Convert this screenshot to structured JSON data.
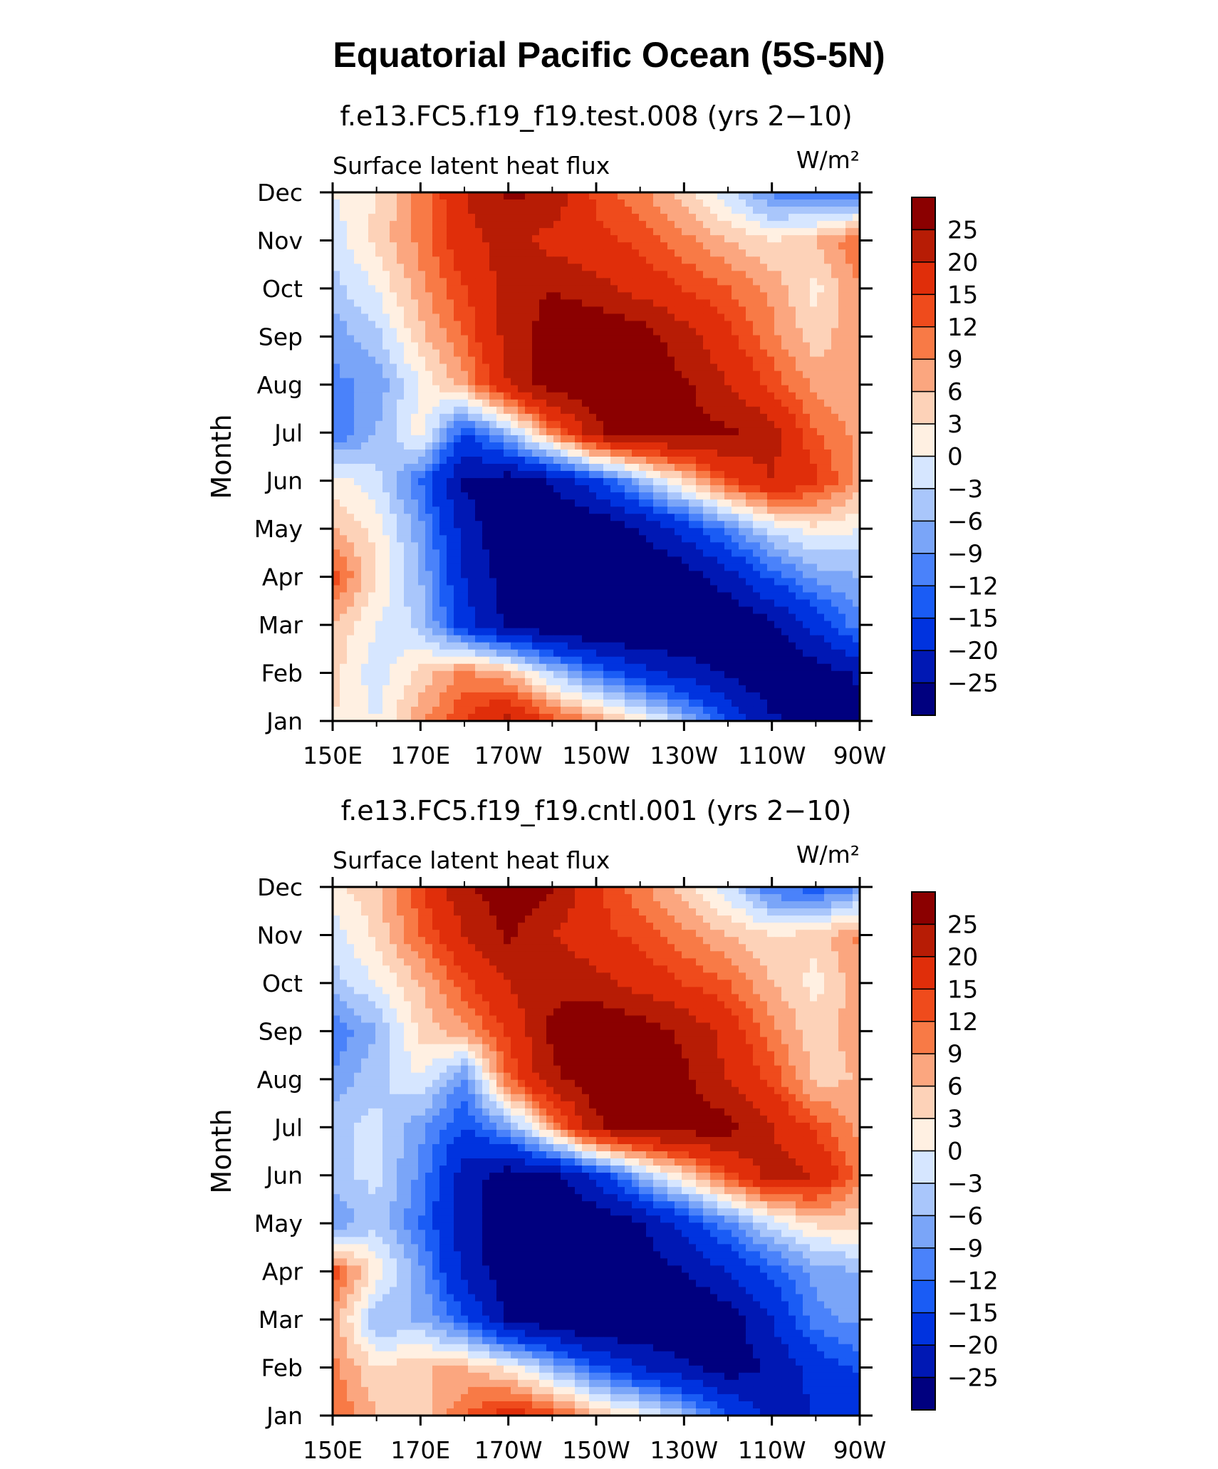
{
  "title": "Equatorial Pacific Ocean (5S-5N)",
  "chart_data": [
    {
      "type": "heatmap",
      "subtitle": "f.e13.FC5.f19_f19.test.008 (yrs 2−10)",
      "left_label": "Surface latent heat flux",
      "units": "W/m²",
      "ylabel": "Month",
      "x_ticks": [
        "150E",
        "170E",
        "170W",
        "150W",
        "130W",
        "110W",
        "90W"
      ],
      "y_ticks": [
        "Jan",
        "Feb",
        "Mar",
        "Apr",
        "May",
        "Jun",
        "Jul",
        "Aug",
        "Sep",
        "Oct",
        "Nov",
        "Dec"
      ],
      "xlim": [
        150,
        270
      ],
      "levels": [
        -25,
        -20,
        -15,
        -12,
        -9,
        -6,
        -3,
        0,
        3,
        6,
        9,
        12,
        15,
        20,
        25
      ],
      "colorbar_labels": [
        "25",
        "20",
        "15",
        "12",
        "9",
        "6",
        "3",
        "0",
        "−3",
        "−6",
        "−9",
        "−12",
        "−15",
        "−20",
        "−25"
      ],
      "colors": [
        "#00007f",
        "#0018b4",
        "#0033df",
        "#1a5cf5",
        "#4a82fa",
        "#7aa5f8",
        "#a9c6fb",
        "#d6e6ff",
        "#fff0e2",
        "#fdd2b8",
        "#fba67f",
        "#f87a46",
        "#ef4b1c",
        "#e02e0a",
        "#b71c05",
        "#8b0000"
      ],
      "lon": [
        150,
        160,
        170,
        180,
        190,
        200,
        210,
        220,
        230,
        240,
        250,
        260,
        270
      ],
      "months": [
        "Jan",
        "Feb",
        "Mar",
        "Apr",
        "May",
        "Jun",
        "Jul",
        "Aug",
        "Sep",
        "Oct",
        "Nov",
        "Dec"
      ],
      "values": [
        [
          3,
          0,
          8,
          15,
          22,
          14,
          8,
          3,
          -5,
          -15,
          -24,
          -27,
          -27
        ],
        [
          4,
          -2,
          4,
          10,
          6,
          -4,
          -12,
          -18,
          -22,
          -26,
          -30,
          -28,
          -24
        ],
        [
          6,
          0,
          -4,
          -18,
          -26,
          -30,
          -32,
          -32,
          -31,
          -30,
          -26,
          -18,
          -10
        ],
        [
          14,
          3,
          -6,
          -20,
          -28,
          -30,
          -32,
          -30,
          -28,
          -22,
          -14,
          -8,
          -6
        ],
        [
          6,
          2,
          -8,
          -22,
          -30,
          -32,
          -30,
          -25,
          -18,
          -10,
          -2,
          2,
          0
        ],
        [
          2,
          -2,
          -12,
          -26,
          -28,
          -24,
          -16,
          -6,
          4,
          14,
          20,
          16,
          8
        ],
        [
          -12,
          -6,
          2,
          -15,
          -5,
          10,
          24,
          28,
          27,
          26,
          22,
          12,
          8
        ],
        [
          -10,
          -8,
          0,
          8,
          20,
          28,
          28,
          27,
          26,
          20,
          14,
          8,
          6
        ],
        [
          -8,
          -4,
          5,
          12,
          22,
          28,
          30,
          28,
          22,
          16,
          10,
          4,
          9
        ],
        [
          -4,
          0,
          8,
          15,
          22,
          25,
          22,
          18,
          15,
          12,
          8,
          2,
          9
        ],
        [
          -2,
          4,
          10,
          18,
          22,
          18,
          16,
          14,
          10,
          6,
          3,
          6,
          12
        ],
        [
          0,
          3,
          10,
          20,
          26,
          24,
          14,
          10,
          4,
          -2,
          -10,
          -12,
          -12
        ]
      ]
    },
    {
      "type": "heatmap",
      "subtitle": "f.e13.FC5.f19_f19.cntl.001 (yrs 2−10)",
      "left_label": "Surface latent heat flux",
      "units": "W/m²",
      "ylabel": "Month",
      "x_ticks": [
        "150E",
        "170E",
        "170W",
        "150W",
        "130W",
        "110W",
        "90W"
      ],
      "y_ticks": [
        "Jan",
        "Feb",
        "Mar",
        "Apr",
        "May",
        "Jun",
        "Jul",
        "Aug",
        "Sep",
        "Oct",
        "Nov",
        "Dec"
      ],
      "xlim": [
        150,
        270
      ],
      "levels": [
        -25,
        -20,
        -15,
        -12,
        -9,
        -6,
        -3,
        0,
        3,
        6,
        9,
        12,
        15,
        20,
        25
      ],
      "colorbar_labels": [
        "25",
        "20",
        "15",
        "12",
        "9",
        "6",
        "3",
        "0",
        "−3",
        "−6",
        "−9",
        "−12",
        "−15",
        "−20",
        "−25"
      ],
      "colors": [
        "#00007f",
        "#0018b4",
        "#0033df",
        "#1a5cf5",
        "#4a82fa",
        "#7aa5f8",
        "#a9c6fb",
        "#d6e6ff",
        "#fff0e2",
        "#fdd2b8",
        "#fba67f",
        "#f87a46",
        "#ef4b1c",
        "#e02e0a",
        "#b71c05",
        "#8b0000"
      ],
      "lon": [
        150,
        160,
        170,
        180,
        190,
        200,
        210,
        220,
        230,
        240,
        250,
        260,
        270
      ],
      "months": [
        "Jan",
        "Feb",
        "Mar",
        "Apr",
        "May",
        "Jun",
        "Jul",
        "Aug",
        "Sep",
        "Oct",
        "Nov",
        "Dec"
      ],
      "values": [
        [
          12,
          6,
          4,
          12,
          18,
          14,
          6,
          2,
          -5,
          -14,
          -22,
          -20,
          -18
        ],
        [
          10,
          3,
          6,
          6,
          2,
          -6,
          -14,
          -20,
          -24,
          -28,
          -24,
          -18,
          -14
        ],
        [
          8,
          -6,
          -6,
          -14,
          -26,
          -30,
          -32,
          -31,
          -30,
          -28,
          -20,
          -10,
          -8
        ],
        [
          14,
          2,
          -8,
          -22,
          -28,
          -30,
          -30,
          -28,
          -25,
          -20,
          -14,
          -8,
          -6
        ],
        [
          -9,
          -4,
          -12,
          -22,
          -30,
          -32,
          -30,
          -26,
          -18,
          -10,
          -2,
          4,
          4
        ],
        [
          -4,
          -2,
          -10,
          -22,
          -28,
          -26,
          -18,
          -6,
          4,
          14,
          22,
          20,
          10
        ],
        [
          -4,
          -2,
          -8,
          -15,
          -8,
          8,
          24,
          28,
          28,
          27,
          20,
          14,
          8
        ],
        [
          -8,
          -4,
          0,
          -10,
          12,
          24,
          28,
          28,
          26,
          20,
          14,
          5,
          6
        ],
        [
          -12,
          -6,
          4,
          8,
          16,
          26,
          30,
          28,
          24,
          18,
          10,
          4,
          8
        ],
        [
          -4,
          0,
          6,
          14,
          20,
          24,
          22,
          18,
          15,
          12,
          6,
          2,
          8
        ],
        [
          -2,
          4,
          12,
          20,
          26,
          20,
          16,
          14,
          10,
          6,
          3,
          4,
          10
        ],
        [
          2,
          5,
          14,
          24,
          28,
          26,
          16,
          10,
          4,
          -2,
          -12,
          -14,
          -10
        ]
      ]
    }
  ]
}
